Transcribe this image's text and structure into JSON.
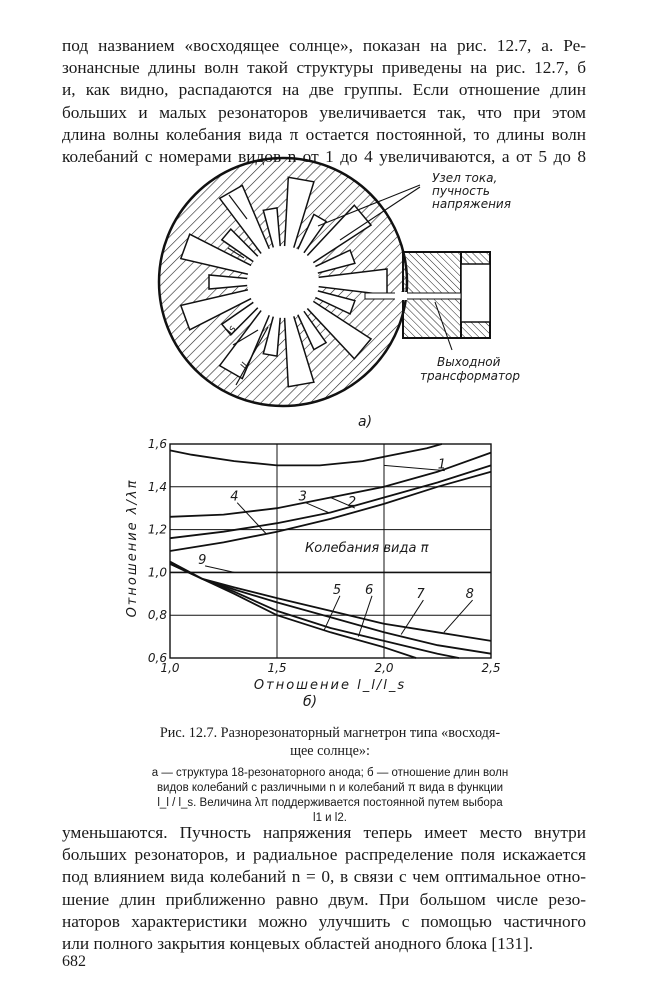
{
  "top_text": [
    "под названием «восходящее солнце», показан на рис. 12.7, а. Ре-",
    "зонансные длины волн такой структуры приведены на рис. 12.7, б",
    "и, как видно, распадаются на две группы. Если отношение длин",
    "больших и малых резонаторов увеличивается так, что при этом",
    "длина волны колебания вида π остается постоянной, то длины волн",
    "колебаний с номерами видов n от 1 до 4 увеличиваются, а от 5 до 8"
  ],
  "figure_a": {
    "label_node": [
      "Узел тока,",
      "пучность",
      "напряжения"
    ],
    "label_output": [
      "Выходной",
      "трансформатор"
    ],
    "dim_small": "ls",
    "dim_large": "ll",
    "panel_label": "а)"
  },
  "chart_data": {
    "type": "line",
    "panel_label": "б)",
    "xlabel": "Отношение l_l/l_s",
    "ylabel": "Отношение λ/λπ",
    "annotation": "Колебания вида π",
    "xlim": [
      1.0,
      2.5
    ],
    "ylim": [
      0.6,
      1.6
    ],
    "xticks": [
      "1,0",
      "1,5",
      "2,0",
      "2,5"
    ],
    "yticks": [
      "0,6",
      "0,8",
      "1,0",
      "1,2",
      "1,4",
      "1,6"
    ],
    "grid": true,
    "series": [
      {
        "name": "1",
        "x": [
          1.0,
          1.1,
          1.3,
          1.5,
          1.7,
          1.9,
          2.0,
          2.2,
          2.27
        ],
        "y": [
          1.57,
          1.55,
          1.52,
          1.5,
          1.5,
          1.52,
          1.54,
          1.58,
          1.6
        ]
      },
      {
        "name": "2",
        "x": [
          1.0,
          1.25,
          1.5,
          1.75,
          2.0,
          2.25,
          2.5
        ],
        "y": [
          1.26,
          1.27,
          1.3,
          1.35,
          1.4,
          1.47,
          1.56
        ]
      },
      {
        "name": "3",
        "x": [
          1.0,
          1.25,
          1.5,
          1.75,
          2.0,
          2.25,
          2.5
        ],
        "y": [
          1.16,
          1.19,
          1.23,
          1.28,
          1.35,
          1.42,
          1.5
        ]
      },
      {
        "name": "4",
        "x": [
          1.0,
          1.25,
          1.5,
          1.75,
          2.0,
          2.25,
          2.5
        ],
        "y": [
          1.1,
          1.14,
          1.19,
          1.25,
          1.32,
          1.4,
          1.47
        ]
      },
      {
        "name": "5",
        "x": [
          1.0,
          1.15,
          1.3,
          1.5,
          1.75,
          2.0,
          2.15
        ],
        "y": [
          1.05,
          0.97,
          0.9,
          0.8,
          0.72,
          0.65,
          0.6
        ]
      },
      {
        "name": "6",
        "x": [
          1.0,
          1.15,
          1.3,
          1.5,
          1.75,
          2.0,
          2.25,
          2.35
        ],
        "y": [
          1.05,
          0.97,
          0.91,
          0.82,
          0.74,
          0.68,
          0.62,
          0.6
        ]
      },
      {
        "name": "7",
        "x": [
          1.0,
          1.15,
          1.3,
          1.5,
          1.75,
          2.0,
          2.25,
          2.5
        ],
        "y": [
          1.04,
          0.97,
          0.92,
          0.86,
          0.79,
          0.72,
          0.66,
          0.62
        ]
      },
      {
        "name": "8",
        "x": [
          1.0,
          1.15,
          1.3,
          1.5,
          1.75,
          2.0,
          2.25,
          2.5
        ],
        "y": [
          1.04,
          0.97,
          0.93,
          0.88,
          0.82,
          0.76,
          0.72,
          0.68
        ]
      },
      {
        "name": "9",
        "x": [
          1.0,
          2.5
        ],
        "y": [
          1.0,
          1.0
        ]
      }
    ]
  },
  "caption": {
    "title": [
      "Рис. 12.7. Разнорезонаторный магнетрон типа «восходя-",
      "щее солнце»:"
    ],
    "body": [
      "а — структура 18-резонаторного анода; б — отношение длин волн",
      "видов колебаний с различными n и колебаний π вида в функции",
      "l_l / l_s. Величина λπ поддерживается постоянной путем выбора",
      "l1 и l2."
    ]
  },
  "bottom_text": [
    "уменьшаются. Пучность напряжения теперь имеет место внутри",
    "больших резонаторов, и радиальное распределение поля искажается",
    "под влиянием вида колебаний n = 0, в связи с чем оптимальное отно-",
    "шение длин приближенно равно двум. При большом числе резо-",
    "наторов характеристики можно улучшить с помощью частичного",
    "или полного закрытия концевых областей анодного блока [131]."
  ],
  "page_number": "682"
}
